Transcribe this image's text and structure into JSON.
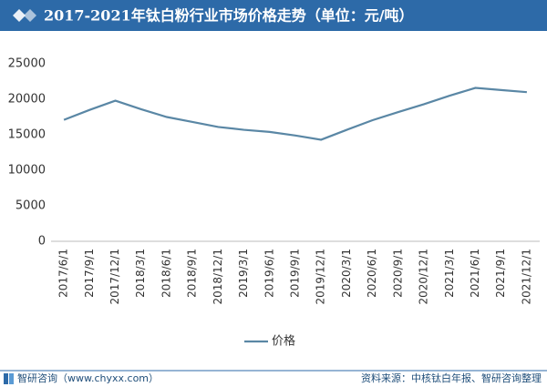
{
  "chart_data": {
    "type": "line",
    "title": "2017-2021年钛白粉行业市场价格走势（单位：元/吨）",
    "categories": [
      "2017/6/1",
      "2017/9/1",
      "2017/12/1",
      "2018/3/1",
      "2018/6/1",
      "2018/9/1",
      "2018/12/1",
      "2019/3/1",
      "2019/6/1",
      "2019/9/1",
      "2019/12/1",
      "2020/3/1",
      "2020/6/1",
      "2020/9/1",
      "2020/12/1",
      "2021/3/1",
      "2021/6/1",
      "2021/9/1",
      "2021/12/1"
    ],
    "series": [
      {
        "name": "价格",
        "color": "#5a87a5",
        "values": [
          17100,
          18500,
          19800,
          18600,
          17500,
          16800,
          16100,
          15700,
          15400,
          14900,
          14300,
          15700,
          17050,
          18200,
          19300,
          20500,
          21600,
          21300,
          21000
        ]
      }
    ],
    "ylim": [
      0,
      25000
    ],
    "yticks": [
      0,
      5000,
      10000,
      15000,
      20000,
      25000
    ],
    "grid": false,
    "legend": "bottom",
    "footer_left": "智研咨询（www.chyxx.com）",
    "source": "资料来源：中核钛白年报、智研咨询整理"
  }
}
